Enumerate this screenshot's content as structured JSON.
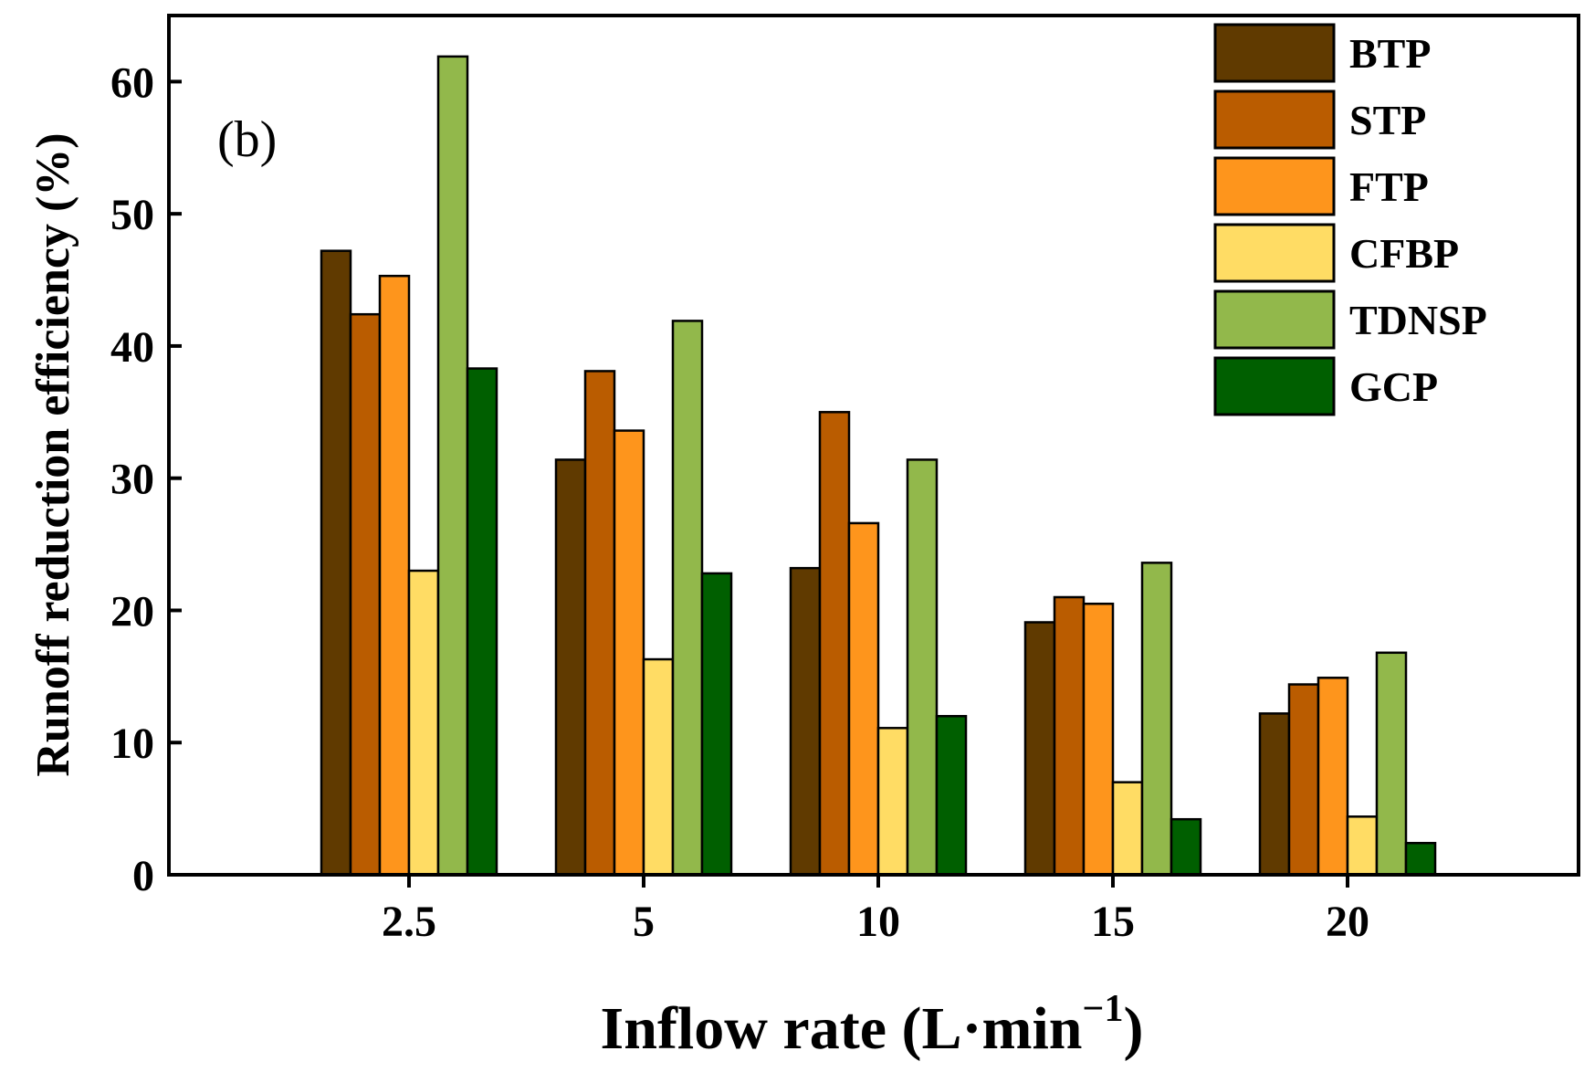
{
  "chart_data": {
    "type": "bar",
    "panel_label": "(b)",
    "categories": [
      "2.5",
      "5",
      "10",
      "15",
      "20"
    ],
    "series": [
      {
        "name": "BTP",
        "color": "#603a00",
        "values": [
          47.2,
          31.4,
          23.2,
          19.1,
          12.2
        ]
      },
      {
        "name": "STP",
        "color": "#ba5c00",
        "values": [
          42.4,
          38.1,
          35.0,
          21.0,
          14.4
        ]
      },
      {
        "name": "FTP",
        "color": "#fe951c",
        "values": [
          45.3,
          33.6,
          26.6,
          20.5,
          14.9
        ]
      },
      {
        "name": "CFBP",
        "color": "#ffdc64",
        "values": [
          23.0,
          16.3,
          11.1,
          7.0,
          4.4
        ]
      },
      {
        "name": "TDNSP",
        "color": "#92b84b",
        "values": [
          61.9,
          41.9,
          31.4,
          23.6,
          16.8
        ]
      },
      {
        "name": "GCP",
        "color": "#005f00",
        "values": [
          38.3,
          22.8,
          12.0,
          4.2,
          2.4
        ]
      }
    ],
    "xlabel": "Inflow rate (L·min",
    "xlabel_superscript": "−1",
    "xlabel_close": ")",
    "ylabel": "Runoff reduction efficiency (%)",
    "ylim": [
      0,
      65
    ],
    "yticks": [
      0,
      10,
      20,
      30,
      40,
      50,
      60
    ],
    "legend_position": "top-right",
    "grid": false
  }
}
